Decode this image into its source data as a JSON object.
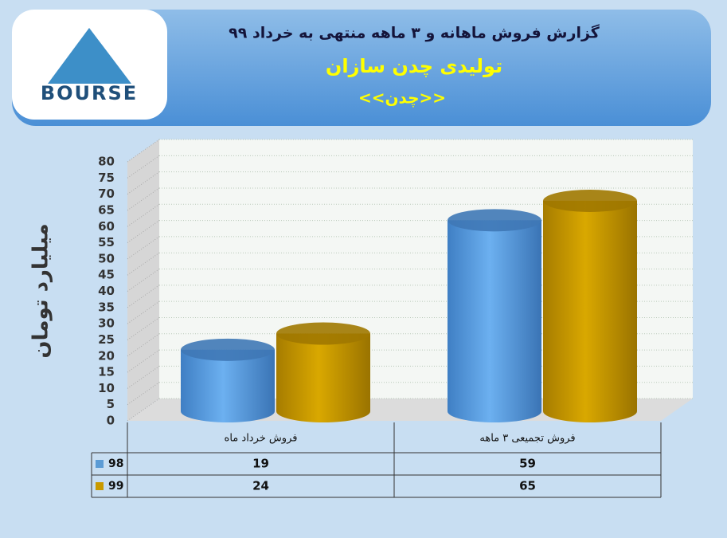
{
  "logo_text": "BOURSE",
  "chart_data": {
    "type": "bar",
    "title": "گزارش فروش ماهانه و ۳ ماهه منتهی به خرداد ۹۹",
    "subtitle": "تولیدی چدن سازان",
    "symbol": "<<چدن>>",
    "ylabel": "میلیارد تومان",
    "categories": [
      "فروش خرداد  ماه",
      "فروش تجمیعی ۳ ماهه"
    ],
    "series": [
      {
        "name": "98",
        "color": "#5b9bd5",
        "values": [
          19,
          59
        ]
      },
      {
        "name": "99",
        "color": "#c99a00",
        "values": [
          24,
          65
        ]
      }
    ],
    "ylim": [
      0,
      80
    ],
    "yticks": [
      0,
      5,
      10,
      15,
      20,
      25,
      30,
      35,
      40,
      45,
      50,
      55,
      60,
      65,
      70,
      75,
      80
    ],
    "grid": true
  }
}
